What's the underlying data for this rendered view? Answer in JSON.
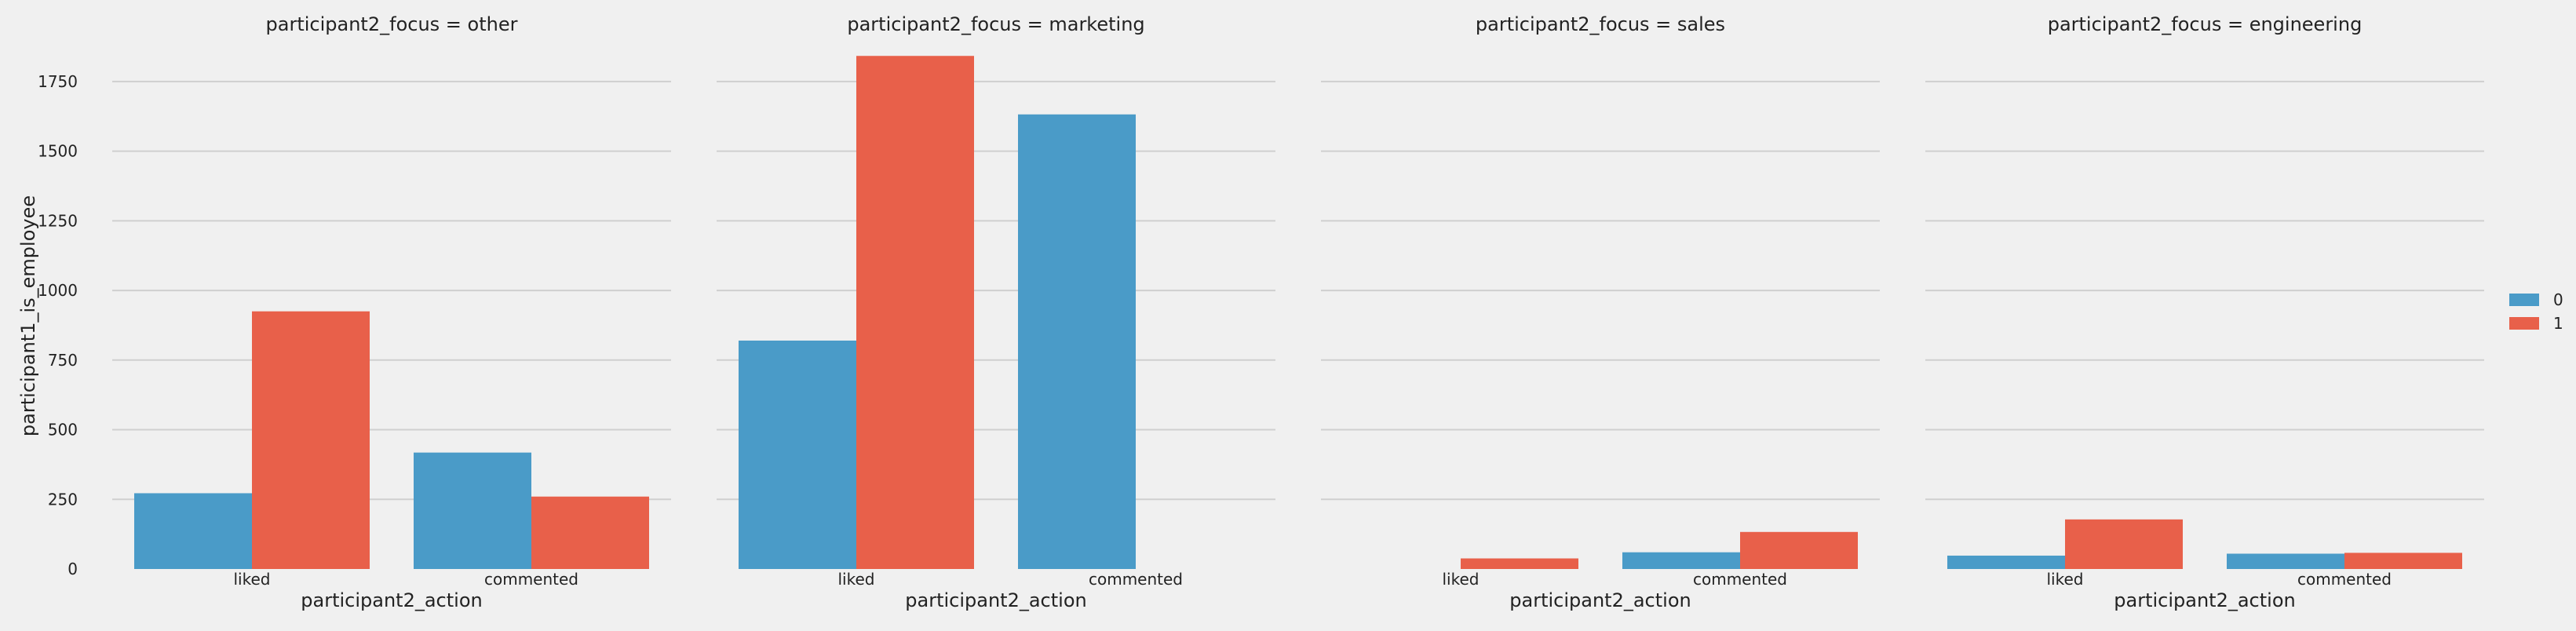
{
  "chart_data": {
    "type": "bar",
    "layout": "facet-grid",
    "ylabel": "participant1_is_employee",
    "xlabel": "participant2_action",
    "categories": [
      "liked",
      "commented"
    ],
    "yticks": [
      0,
      250,
      500,
      750,
      1000,
      1250,
      1500,
      1750
    ],
    "ylim": [
      0,
      1930
    ],
    "grid": true,
    "legend": {
      "placement": "right",
      "entries": [
        {
          "label": "0",
          "color": "#4a9bc8"
        },
        {
          "label": "1",
          "color": "#e8604a"
        }
      ]
    },
    "panels": [
      {
        "title": "participant2_focus = other",
        "series": [
          {
            "name": "0",
            "values": [
              272,
              418
            ]
          },
          {
            "name": "1",
            "values": [
              925,
              260
            ]
          }
        ]
      },
      {
        "title": "participant2_focus = marketing",
        "series": [
          {
            "name": "0",
            "values": [
              820,
              1632
            ]
          },
          {
            "name": "1",
            "values": [
              1842,
              0
            ]
          }
        ]
      },
      {
        "title": "participant2_focus = sales",
        "series": [
          {
            "name": "0",
            "values": [
              0,
              60
            ]
          },
          {
            "name": "1",
            "values": [
              38,
              133
            ]
          }
        ]
      },
      {
        "title": "participant2_focus = engineering",
        "series": [
          {
            "name": "0",
            "values": [
              48,
              55
            ]
          },
          {
            "name": "1",
            "values": [
              178,
              58
            ]
          }
        ]
      }
    ]
  }
}
